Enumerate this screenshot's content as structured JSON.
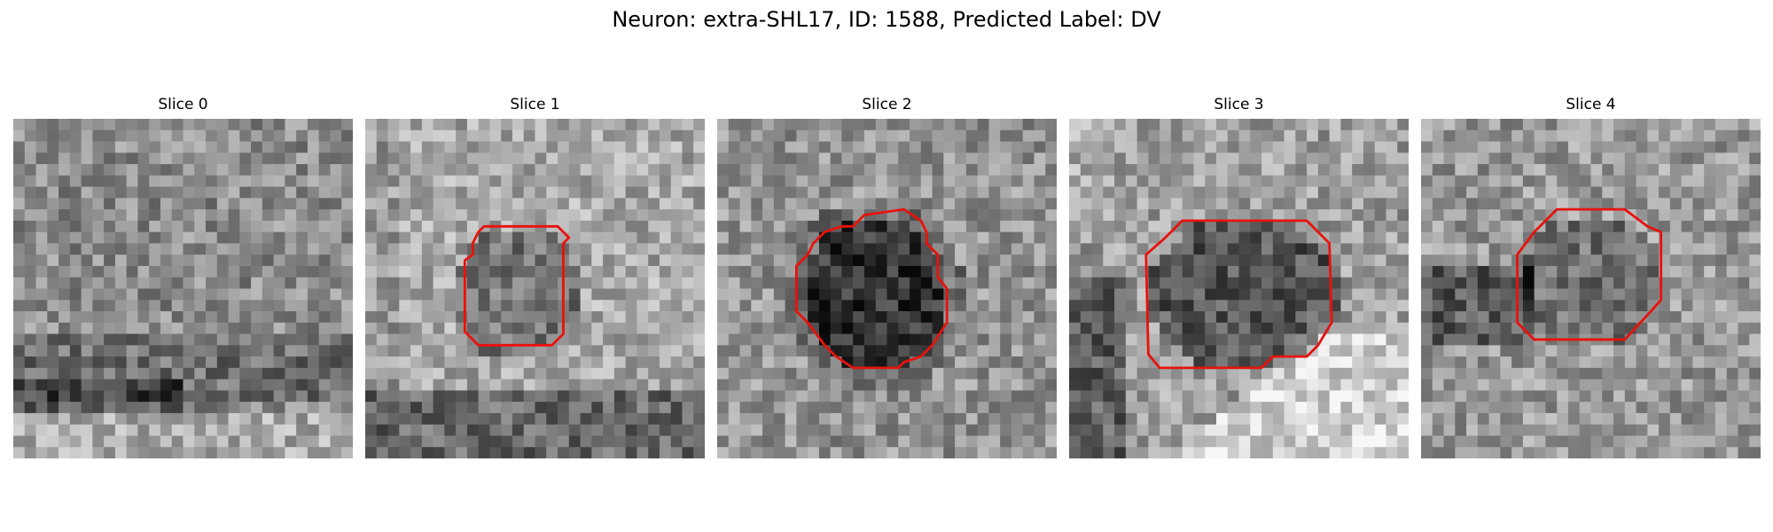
{
  "figure": {
    "title": "Neuron: extra-SHL17, ID: 1588, Predicted Label: DV"
  },
  "panels": [
    {
      "title": "Slice 0",
      "has_contour": false
    },
    {
      "title": "Slice 1",
      "has_contour": true
    },
    {
      "title": "Slice 2",
      "has_contour": true
    },
    {
      "title": "Slice 3",
      "has_contour": true
    },
    {
      "title": "Slice 4",
      "has_contour": true
    }
  ],
  "colors": {
    "contour": "#e8120c",
    "background": "#ffffff"
  }
}
